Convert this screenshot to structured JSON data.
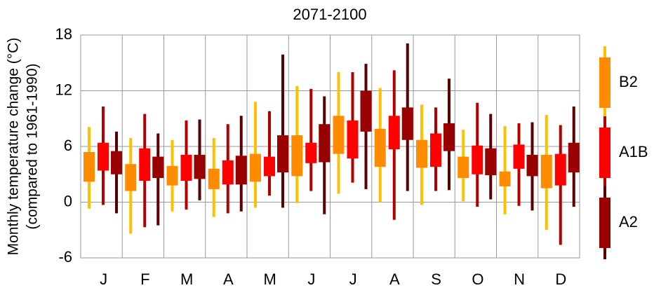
{
  "chart_data": {
    "type": "floating-box",
    "title": "2071-2100",
    "ylabel": [
      "Monthly temperature change (°C)",
      "(compared to 1961-1990)"
    ],
    "categories": [
      "J",
      "F",
      "M",
      "A",
      "M",
      "J",
      "J",
      "A",
      "S",
      "O",
      "N",
      "D"
    ],
    "ylim": [
      -6,
      18
    ],
    "yticks": [
      -6,
      0,
      6,
      12,
      18
    ],
    "grid": true,
    "series": [
      {
        "name": "B2",
        "color": "#ff8c00",
        "whisker_color": "#ffc000",
        "whisker_low": [
          -0.7,
          -3.4,
          -1.0,
          -1.6,
          -0.6,
          -0.1,
          0.9,
          0.0,
          -0.3,
          0.1,
          -1.3,
          -3.0
        ],
        "box_low": [
          2.2,
          1.2,
          1.8,
          1.4,
          2.2,
          2.8,
          5.2,
          3.8,
          3.7,
          2.6,
          1.7,
          1.5
        ],
        "box_high": [
          5.4,
          4.1,
          3.9,
          3.6,
          5.2,
          7.2,
          9.3,
          7.9,
          6.7,
          4.9,
          3.3,
          5.1
        ],
        "whisker_high": [
          8.1,
          6.9,
          6.7,
          6.9,
          10.8,
          12.5,
          14.0,
          12.3,
          10.5,
          7.8,
          8.2,
          9.4
        ]
      },
      {
        "name": "A1B",
        "color": "#ff0000",
        "whisker_color": "#b00000",
        "whisker_low": [
          -0.3,
          -2.7,
          -0.8,
          -1.2,
          0.7,
          1.2,
          2.1,
          -1.9,
          1.2,
          -0.5,
          -0.4,
          -4.6
        ],
        "box_low": [
          3.4,
          2.3,
          2.3,
          1.9,
          2.8,
          4.2,
          4.7,
          5.7,
          3.8,
          3.0,
          3.6,
          1.8
        ],
        "box_high": [
          6.4,
          5.8,
          5.1,
          4.5,
          4.9,
          6.4,
          8.8,
          9.3,
          7.4,
          6.1,
          6.2,
          5.2
        ],
        "whisker_high": [
          10.3,
          9.5,
          8.8,
          8.4,
          9.8,
          12.2,
          14.0,
          14.2,
          10.2,
          10.7,
          8.5,
          8.3
        ]
      },
      {
        "name": "A2",
        "color": "#990000",
        "whisker_color": "#5a0000",
        "whisker_low": [
          -1.2,
          -2.5,
          0.2,
          -1.0,
          -0.6,
          -1.3,
          1.4,
          1.2,
          1.3,
          0.3,
          -0.9,
          -0.5
        ],
        "box_low": [
          3.0,
          2.6,
          2.5,
          1.9,
          3.2,
          4.3,
          7.6,
          6.7,
          5.5,
          2.9,
          2.8,
          3.2
        ],
        "box_high": [
          5.5,
          4.9,
          5.1,
          5.0,
          7.2,
          8.4,
          12.0,
          10.2,
          8.5,
          5.8,
          5.1,
          6.4
        ],
        "whisker_high": [
          7.6,
          7.4,
          8.9,
          9.3,
          15.9,
          11.4,
          14.9,
          17.1,
          13.3,
          9.5,
          8.6,
          10.3
        ]
      }
    ]
  }
}
